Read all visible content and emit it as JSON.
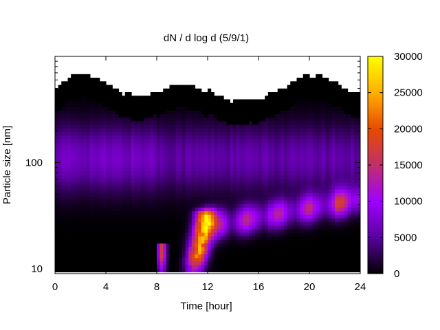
{
  "chart_data": {
    "type": "heatmap",
    "title": "dN / d log d (5/9/1)",
    "xlabel": "Time [hour]",
    "ylabel": "Particle size [nm]",
    "xlim": [
      0,
      24
    ],
    "ylim": [
      9,
      1000
    ],
    "y_scale": "log",
    "x_ticks": [
      0,
      4,
      8,
      12,
      16,
      20,
      24
    ],
    "x_tick_labels": [
      "0",
      "4",
      "8",
      "12",
      "16",
      "20",
      "24"
    ],
    "y_ticks": [
      10,
      100
    ],
    "y_tick_labels": [
      "10",
      "100"
    ],
    "colorbar": {
      "range": [
        0,
        30000
      ],
      "ticks": [
        0,
        5000,
        10000,
        15000,
        20000,
        25000,
        30000
      ],
      "tick_labels": [
        "0",
        "5000",
        "10000",
        "15000",
        "20000",
        "25000",
        "30000"
      ],
      "palette": "gnuplot",
      "colors": [
        "#000000",
        "#5a00a0",
        "#a000ff",
        "#c0306a",
        "#e84a00",
        "#ffb000",
        "#ffff00"
      ]
    },
    "grid": false,
    "features": [
      {
        "label": "nucleation burst",
        "t_start": 10.0,
        "t_end": 12.0,
        "d_min": 10,
        "d_max": 32,
        "peak_value": 28000
      },
      {
        "label": "growth band",
        "t_start": 12.0,
        "t_end": 24.0,
        "d_start": 25,
        "d_end": 45,
        "peak_value": 14000
      },
      {
        "label": "background mode",
        "t_start": 0,
        "t_end": 24,
        "d_center": 110,
        "peak_value": 6000
      }
    ]
  }
}
